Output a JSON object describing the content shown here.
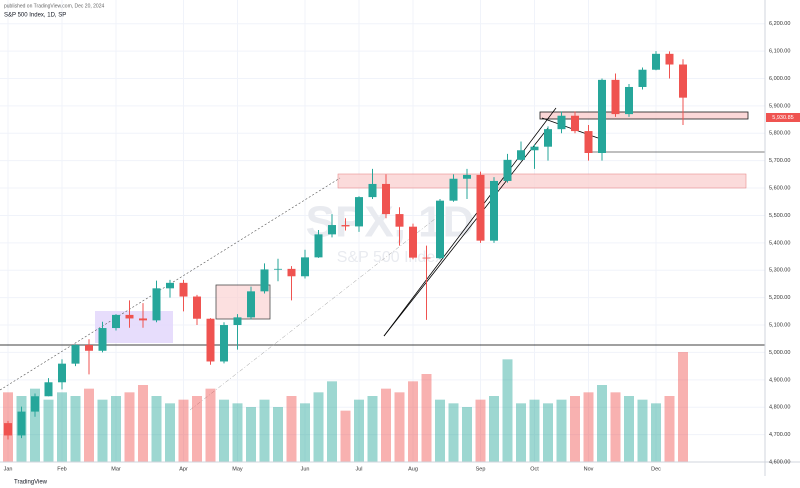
{
  "chart_data": {
    "type": "candlestick",
    "title": "S&P 500 Index, 1D, SP",
    "subtitle": "published on TradingView.com, Dec 20, 2024",
    "watermark": "SPX, 1D",
    "watermark_sub": "S&P 500 Index",
    "brand": "TradingView",
    "last_price_label": "5,930.85",
    "categories": [
      "Jan",
      null,
      null,
      null,
      "Feb",
      null,
      null,
      null,
      "Mar",
      null,
      null,
      null,
      null,
      "Apr",
      null,
      null,
      null,
      "May",
      null,
      null,
      null,
      null,
      "Jun",
      null,
      null,
      null,
      "Jul",
      null,
      null,
      null,
      "Aug",
      null,
      null,
      null,
      null,
      "Sep",
      null,
      null,
      null,
      "Oct",
      null,
      null,
      null,
      "Nov",
      null,
      null,
      null,
      null,
      "Dec",
      null,
      null
    ],
    "open": [
      4742,
      4697,
      4784,
      4840,
      4891,
      4959,
      5027,
      5006,
      5089,
      5137,
      5124,
      5117,
      5234,
      5254,
      5204,
      5123,
      4967,
      5100,
      5128,
      5223,
      5303,
      5305,
      5278,
      5347,
      5431,
      5465,
      5460,
      5567,
      5615,
      5505,
      5459,
      5346,
      5344,
      5554,
      5634,
      5648,
      5408,
      5626,
      5703,
      5738,
      5751,
      5815,
      5864,
      5808,
      5728,
      5995,
      5870,
      5969,
      6032,
      6090,
      6051
    ],
    "high": [
      4750,
      4802,
      4850,
      4906,
      4975,
      5030,
      5048,
      5112,
      5140,
      5190,
      5180,
      5262,
      5265,
      5265,
      5210,
      5125,
      5110,
      5140,
      5240,
      5325,
      5342,
      5315,
      5375,
      5447,
      5505,
      5490,
      5570,
      5670,
      5650,
      5530,
      5470,
      5390,
      5560,
      5650,
      5670,
      5660,
      5640,
      5725,
      5770,
      5760,
      5825,
      5880,
      5880,
      5830,
      6000,
      6018,
      5980,
      6040,
      6100,
      6099,
      6070
    ],
    "low": [
      4682,
      4687,
      4765,
      4840,
      4865,
      4950,
      4920,
      5000,
      5080,
      5090,
      5090,
      5110,
      5200,
      5150,
      5100,
      4955,
      4960,
      5010,
      5120,
      5215,
      5260,
      5190,
      5270,
      5345,
      5420,
      5445,
      5440,
      5560,
      5490,
      5390,
      5340,
      5119,
      5340,
      5550,
      5560,
      5400,
      5400,
      5620,
      5700,
      5670,
      5700,
      5800,
      5800,
      5700,
      5700,
      5860,
      5860,
      5960,
      6030,
      6000,
      5830
    ],
    "close": [
      4697,
      4784,
      4840,
      4891,
      4959,
      5027,
      5006,
      5089,
      5137,
      5124,
      5117,
      5234,
      5254,
      5204,
      5123,
      4967,
      5100,
      5128,
      5223,
      5303,
      5305,
      5278,
      5347,
      5431,
      5465,
      5460,
      5567,
      5615,
      5505,
      5459,
      5346,
      5344,
      5554,
      5634,
      5648,
      5408,
      5626,
      5703,
      5738,
      5751,
      5815,
      5864,
      5808,
      5728,
      5995,
      5870,
      5969,
      6032,
      6090,
      6051,
      5930
    ],
    "volume": [
      19,
      18,
      20,
      17,
      19,
      18,
      20,
      17,
      18,
      19,
      21,
      18,
      16,
      17,
      18,
      20,
      17,
      16,
      15,
      17,
      15,
      18,
      16,
      19,
      22,
      14,
      17,
      18,
      20,
      19,
      22,
      24,
      17,
      16,
      15,
      17,
      18,
      28,
      16,
      17,
      16,
      17,
      18,
      19,
      21,
      19,
      18,
      17,
      16,
      18,
      30
    ],
    "volume_ylim": [
      0,
      30
    ],
    "ylim": [
      4600,
      6250
    ],
    "yticks": [
      {
        "value": 4600,
        "label": "4,600.00"
      },
      {
        "value": 4700,
        "label": "4,700.00"
      },
      {
        "value": 4800,
        "label": "4,800.00"
      },
      {
        "value": 4900,
        "label": "4,900.00"
      },
      {
        "value": 5000,
        "label": "5,000.00"
      },
      {
        "value": 5100,
        "label": "5,100.00"
      },
      {
        "value": 5200,
        "label": "5,200.00"
      },
      {
        "value": 5300,
        "label": "5,300.00"
      },
      {
        "value": 5400,
        "label": "5,400.00"
      },
      {
        "value": 5500,
        "label": "5,500.00"
      },
      {
        "value": 5600,
        "label": "5,600.00"
      },
      {
        "value": 5700,
        "label": "5,700.00"
      },
      {
        "value": 5800,
        "label": "5,800.00"
      },
      {
        "value": 5900,
        "label": "5,900.00"
      },
      {
        "value": 6000,
        "label": "6,000.00"
      },
      {
        "value": 6100,
        "label": "6,100.00"
      },
      {
        "value": 6200,
        "label": "6,200.00"
      }
    ],
    "up_color": "#26a69a",
    "down_color": "#ef5350",
    "grid": true
  }
}
